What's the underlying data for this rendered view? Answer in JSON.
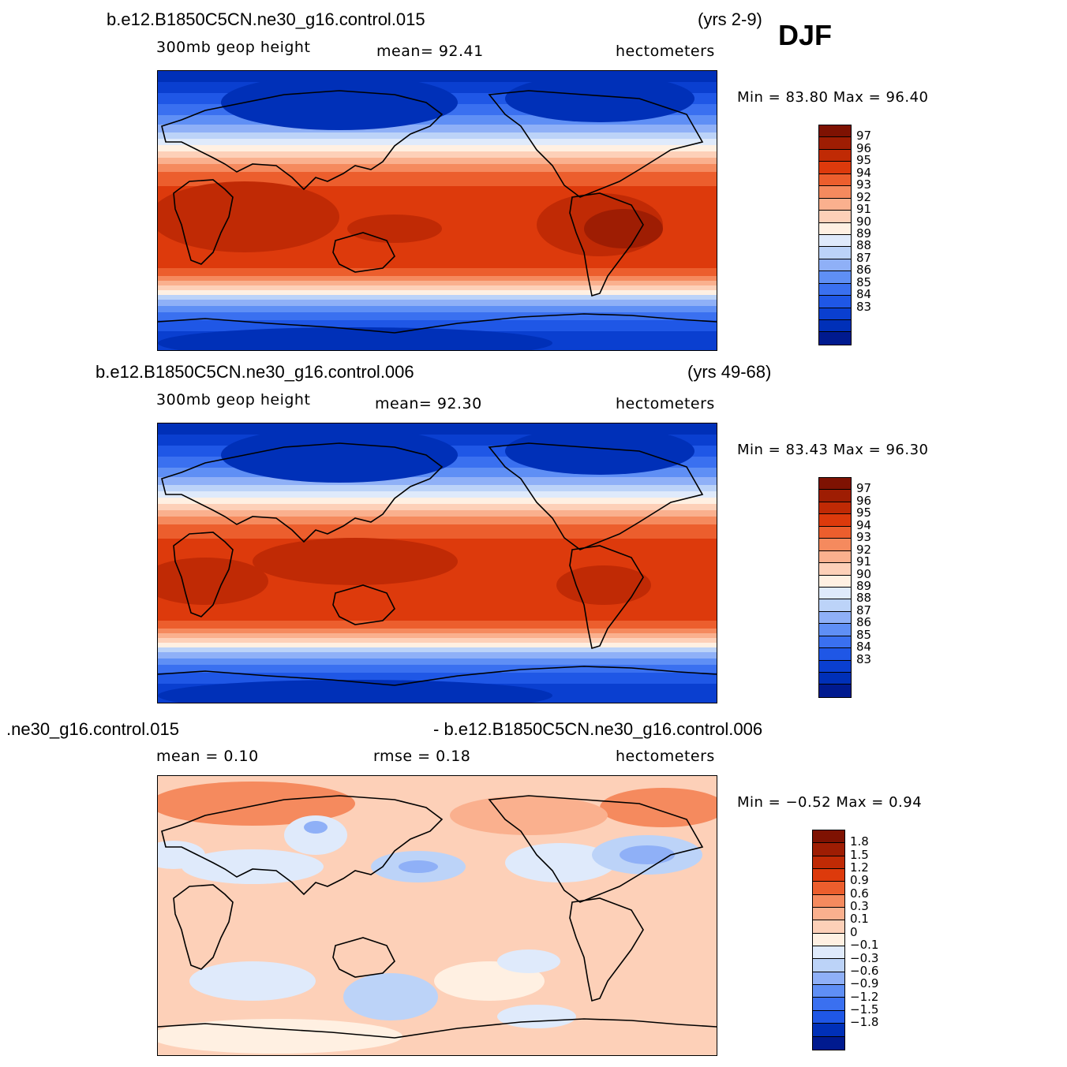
{
  "season": "DJF",
  "colors": {
    "abs": [
      "#001a8f",
      "#0030b8",
      "#0a3fd0",
      "#1f57e6",
      "#3a70f0",
      "#5f8ff5",
      "#8fb0f7",
      "#bcd3f8",
      "#dfeafb",
      "#fff0e2",
      "#fdd0b8",
      "#fab08e",
      "#f58a5e",
      "#ec5e2d",
      "#dd3a0c",
      "#c02a05",
      "#9e1d03",
      "#7e1202"
    ],
    "diff": [
      "#001a8f",
      "#0030b8",
      "#1f57e6",
      "#3a70f0",
      "#5f8ff5",
      "#8fb0f7",
      "#bcd3f8",
      "#dfeafb",
      "#fff0e2",
      "#fdd0b8",
      "#fab08e",
      "#f58a5e",
      "#ec5e2d",
      "#dd3a0c",
      "#c02a05",
      "#9e1d03",
      "#7e1202"
    ]
  },
  "panels": [
    {
      "case": "b.e12.B1850C5CN.ne30_g16.control.015",
      "years": "(yrs 2-9)",
      "variable": "300mb  geop  height",
      "stat1": "mean=   92.41",
      "units": "hectometers",
      "minmax": "Min =   83.80  Max =   96.40"
    },
    {
      "case": "b.e12.B1850C5CN.ne30_g16.control.006",
      "years": "(yrs 49-68)",
      "variable": "300mb  geop  height",
      "stat1": "mean=   92.30",
      "units": "hectometers",
      "minmax": "Min =   83.43  Max =   96.30"
    },
    {
      "case": ".ne30_g16.control.015",
      "case2": "- b.e12.B1850C5CN.ne30_g16.control.006",
      "stat1": "mean =    0.10",
      "stat2": "rmse =    0.18",
      "units": "hectometers",
      "minmax": "Min =   −0.52  Max =     0.94"
    }
  ],
  "chart_data": [
    {
      "type": "heatmap",
      "title": "b.e12.B1850C5CN.ne30_g16.control.015 (yrs 2-9)",
      "variable": "300mb geop height",
      "units": "hectometers",
      "mean": 92.41,
      "min": 83.8,
      "max": 96.4,
      "colorbar_ticks": [
        "97",
        "96",
        "95",
        "94",
        "93",
        "92",
        "91",
        "90",
        "89",
        "88",
        "87",
        "86",
        "85",
        "84",
        "83"
      ]
    },
    {
      "type": "heatmap",
      "title": "b.e12.B1850C5CN.ne30_g16.control.006 (yrs 49-68)",
      "variable": "300mb geop height",
      "units": "hectometers",
      "mean": 92.3,
      "min": 83.43,
      "max": 96.3,
      "colorbar_ticks": [
        "97",
        "96",
        "95",
        "94",
        "93",
        "92",
        "91",
        "90",
        "89",
        "88",
        "87",
        "86",
        "85",
        "84",
        "83"
      ]
    },
    {
      "type": "heatmap",
      "title": ".ne30_g16.control.015 - b.e12.B1850C5CN.ne30_g16.control.006",
      "units": "hectometers",
      "mean": 0.1,
      "rmse": 0.18,
      "min": -0.52,
      "max": 0.94,
      "colorbar_ticks": [
        "1.8",
        "1.5",
        "1.2",
        "0.9",
        "0.6",
        "0.3",
        "0.1",
        "0",
        "−0.1",
        "−0.3",
        "−0.6",
        "−0.9",
        "−1.2",
        "−1.5",
        "−1.8"
      ]
    }
  ]
}
